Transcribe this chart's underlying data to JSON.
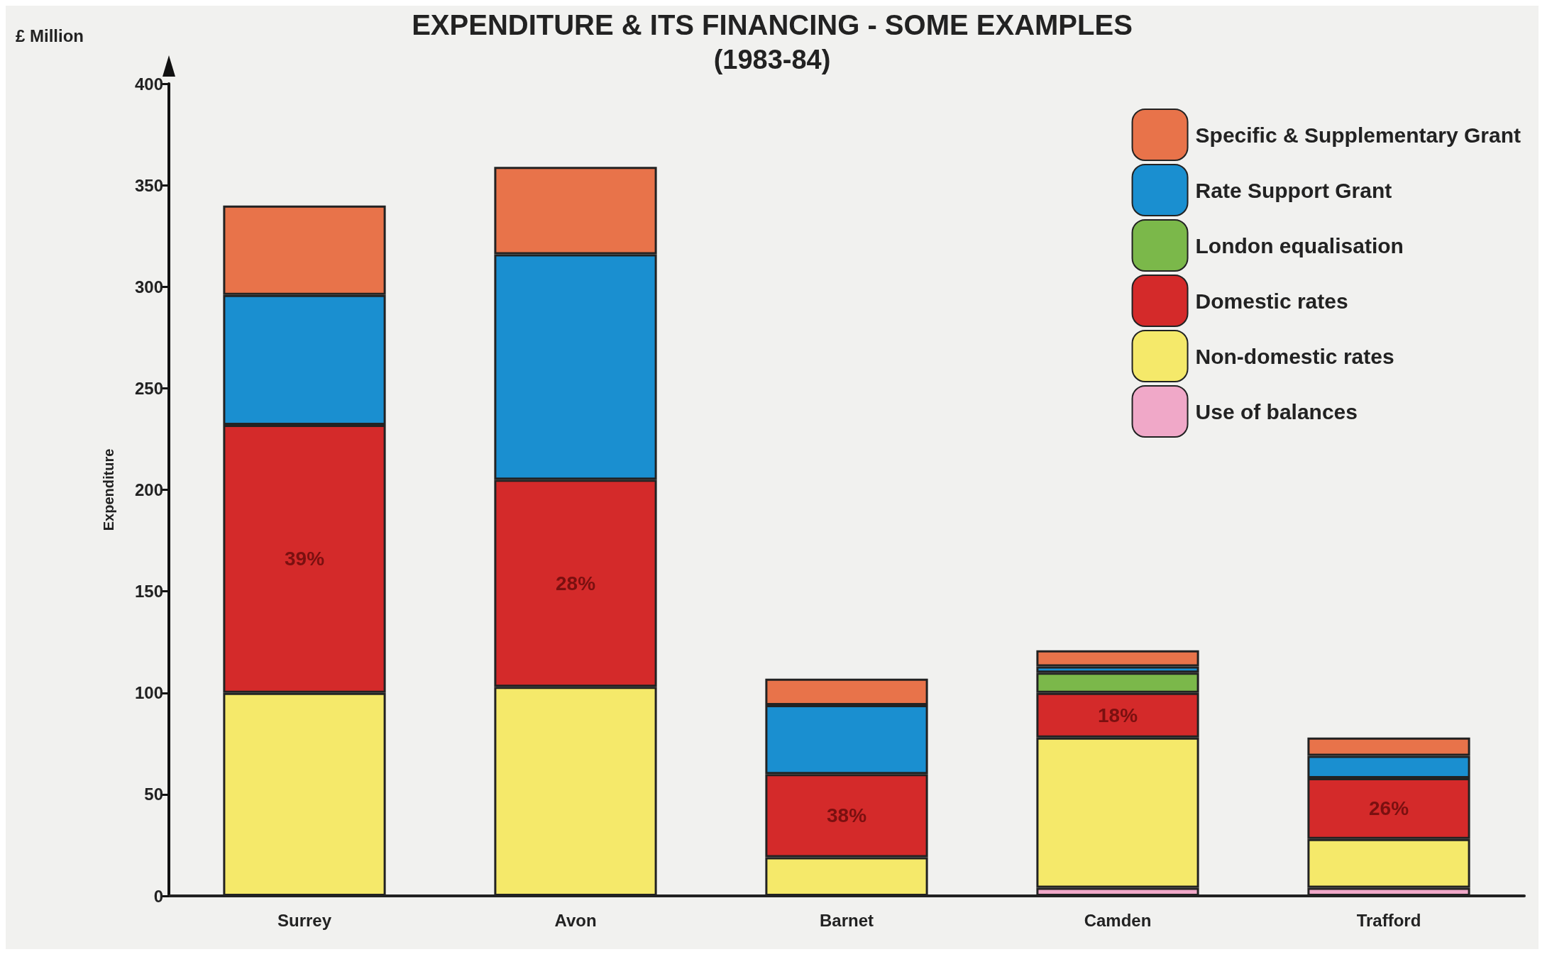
{
  "chart_data": {
    "type": "bar",
    "title": "EXPENDITURE & ITS FINANCING - SOME EXAMPLES",
    "subtitle": "(1983-84)",
    "ylabel": "Expenditure",
    "annotations": [
      "£ Million",
      "39%",
      "28%",
      "38%",
      "18%",
      "26%"
    ],
    "categories": [
      "Surrey",
      "Avon",
      "Barnet",
      "Camden",
      "Trafford"
    ],
    "stacked": true,
    "ylim": [
      0,
      400
    ],
    "yticks": [
      0,
      50,
      100,
      150,
      200,
      250,
      300,
      350,
      400
    ],
    "grid": false,
    "legend": "top right",
    "series": [
      {
        "name": "Use of balances",
        "color": "#f0a8c8",
        "values": [
          null,
          null,
          null,
          4,
          4
        ]
      },
      {
        "name": "Non-domestic rates",
        "color": "#f5e96a",
        "values": [
          100,
          103,
          19,
          74,
          24
        ]
      },
      {
        "name": "Domestic rates",
        "color": "#d42a2a",
        "values": [
          132,
          102,
          41,
          22,
          30
        ]
      },
      {
        "name": "London equalisation",
        "color": "#7bb84a",
        "values": [
          null,
          null,
          null,
          10,
          null
        ]
      },
      {
        "name": "Rate Support Grant",
        "color": "#1a8fd0",
        "values": [
          64,
          111,
          34,
          3,
          11
        ]
      },
      {
        "name": "Specific & Supplementary Grant",
        "color": "#e8734a",
        "values": [
          44,
          43,
          13,
          8,
          9
        ]
      }
    ]
  }
}
